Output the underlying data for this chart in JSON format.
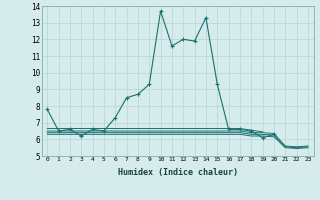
{
  "xlabel": "Humidex (Indice chaleur)",
  "x": [
    0,
    1,
    2,
    3,
    4,
    5,
    6,
    7,
    8,
    9,
    10,
    11,
    12,
    13,
    14,
    15,
    16,
    17,
    18,
    19,
    20,
    21,
    22,
    23
  ],
  "series_main": [
    7.8,
    6.5,
    6.6,
    6.2,
    6.6,
    6.5,
    7.3,
    8.5,
    8.7,
    9.3,
    13.7,
    11.6,
    12.0,
    11.9,
    13.3,
    9.3,
    6.6,
    6.6,
    6.5,
    6.1,
    6.3,
    null,
    null,
    null
  ],
  "line1_x": [
    0,
    1,
    2,
    3,
    4,
    5,
    6,
    7,
    8,
    9,
    10,
    11,
    12,
    13,
    14,
    15,
    16,
    17,
    18,
    19
  ],
  "line1_y": [
    6.65,
    6.65,
    6.65,
    6.65,
    6.65,
    6.65,
    6.65,
    6.65,
    6.65,
    6.65,
    6.65,
    6.65,
    6.65,
    6.65,
    6.65,
    6.65,
    6.65,
    6.65,
    6.55,
    6.45
  ],
  "line2_x": [
    0,
    1,
    2,
    3,
    4,
    5,
    6,
    7,
    8,
    9,
    10,
    11,
    12,
    13,
    14,
    15,
    16,
    17,
    18,
    19,
    20,
    21,
    22,
    23
  ],
  "line2_y": [
    6.5,
    6.5,
    6.5,
    6.5,
    6.5,
    6.5,
    6.5,
    6.5,
    6.5,
    6.5,
    6.5,
    6.5,
    6.5,
    6.5,
    6.5,
    6.5,
    6.5,
    6.5,
    6.4,
    6.4,
    6.35,
    5.6,
    5.55,
    5.6
  ],
  "line3_x": [
    0,
    1,
    2,
    3,
    4,
    5,
    6,
    7,
    8,
    9,
    10,
    11,
    12,
    13,
    14,
    15,
    16,
    17,
    18,
    19,
    20,
    21,
    22,
    23
  ],
  "line3_y": [
    6.4,
    6.4,
    6.4,
    6.4,
    6.4,
    6.4,
    6.4,
    6.4,
    6.4,
    6.4,
    6.4,
    6.4,
    6.4,
    6.4,
    6.4,
    6.4,
    6.4,
    6.4,
    6.3,
    6.3,
    6.25,
    5.55,
    5.5,
    5.55
  ],
  "line4_x": [
    0,
    1,
    2,
    3,
    4,
    5,
    6,
    7,
    8,
    9,
    10,
    11,
    12,
    13,
    14,
    15,
    16,
    17,
    18,
    19,
    20,
    21,
    22,
    23
  ],
  "line4_y": [
    6.3,
    6.3,
    6.3,
    6.3,
    6.3,
    6.3,
    6.3,
    6.3,
    6.3,
    6.3,
    6.3,
    6.3,
    6.3,
    6.3,
    6.3,
    6.3,
    6.3,
    6.3,
    6.2,
    6.2,
    6.15,
    5.5,
    5.45,
    5.5
  ],
  "bg_color": "#d6ecec",
  "grid_color": "#b8d4d4",
  "line_color": "#1a7070",
  "ylim": [
    5,
    14
  ],
  "yticks": [
    5,
    6,
    7,
    8,
    9,
    10,
    11,
    12,
    13,
    14
  ],
  "xlim": [
    -0.5,
    23.5
  ]
}
